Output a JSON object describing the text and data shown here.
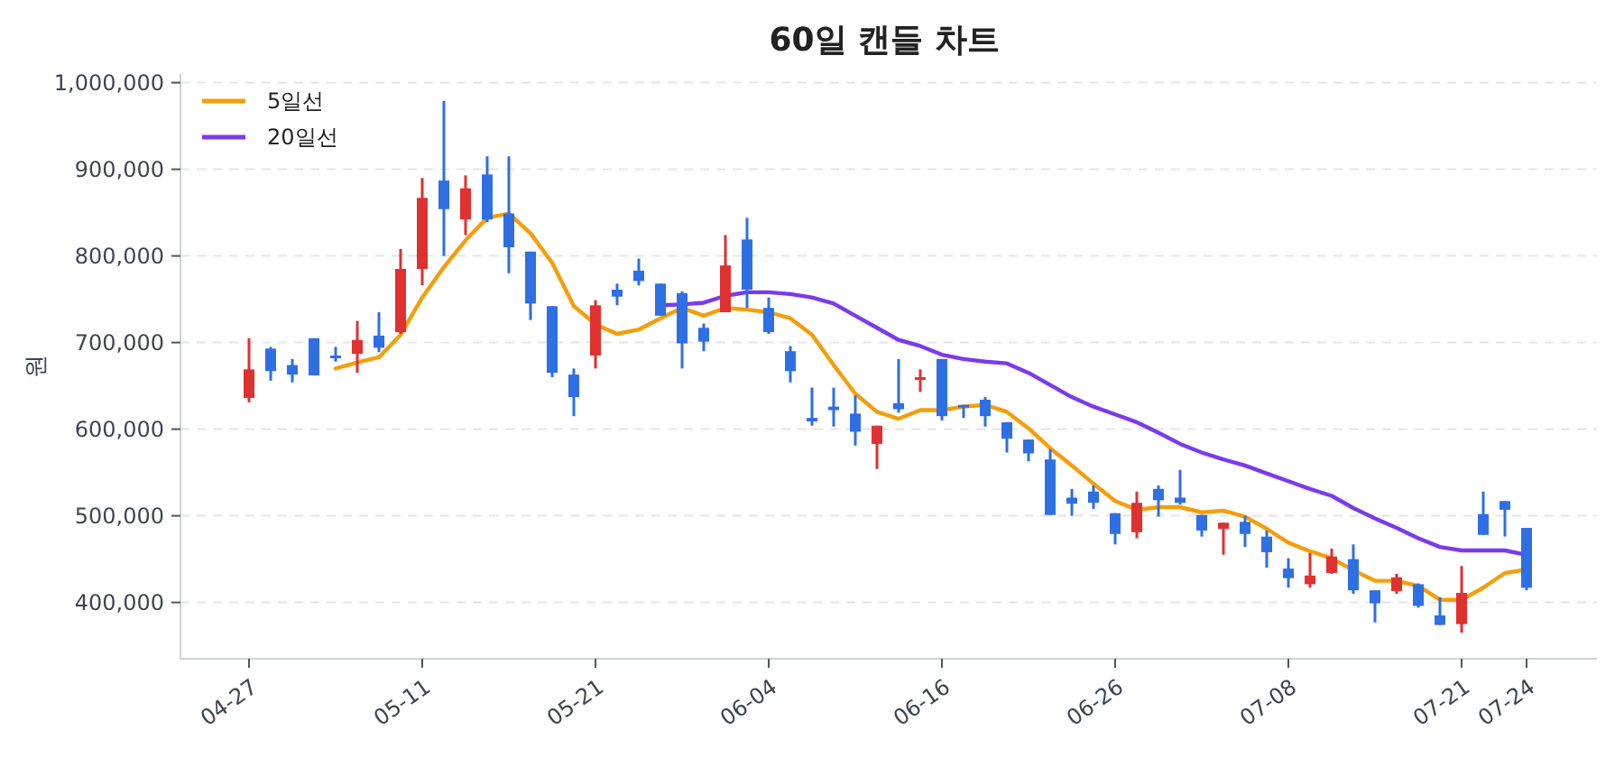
{
  "chart_data": {
    "type": "candlestick",
    "title": "60일 캔들 차트",
    "ylabel": "원",
    "categories": [
      "04-27",
      null,
      null,
      null,
      null,
      null,
      null,
      null,
      "05-11",
      null,
      null,
      null,
      null,
      null,
      null,
      null,
      "05-21",
      null,
      null,
      null,
      null,
      null,
      null,
      null,
      "06-04",
      null,
      null,
      null,
      null,
      null,
      null,
      null,
      "06-16",
      null,
      null,
      null,
      null,
      null,
      null,
      null,
      "06-26",
      null,
      null,
      null,
      null,
      null,
      null,
      null,
      "07-08",
      null,
      null,
      null,
      null,
      null,
      null,
      null,
      "07-21",
      null,
      null,
      "07-24"
    ],
    "ohlc": [
      [
        636000,
        705000,
        631000,
        669000
      ],
      [
        693000,
        695000,
        656000,
        667000
      ],
      [
        674000,
        681000,
        654000,
        663000
      ],
      [
        705000,
        705000,
        662000,
        662000
      ],
      [
        685000,
        695000,
        678000,
        683000
      ],
      [
        687000,
        725000,
        665000,
        703000
      ],
      [
        708000,
        735000,
        689000,
        694000
      ],
      [
        712000,
        808000,
        710000,
        785000
      ],
      [
        785000,
        890000,
        766000,
        867000
      ],
      [
        887000,
        979000,
        800000,
        854000
      ],
      [
        842000,
        893000,
        824000,
        878000
      ],
      [
        894000,
        915000,
        839000,
        842000
      ],
      [
        849000,
        915000,
        780000,
        810000
      ],
      [
        805000,
        805000,
        726000,
        745000
      ],
      [
        742000,
        742000,
        660000,
        665000
      ],
      [
        663000,
        670000,
        615000,
        637000
      ],
      [
        685000,
        749000,
        670000,
        743000
      ],
      [
        761000,
        768000,
        743000,
        753000
      ],
      [
        783000,
        797000,
        766000,
        771000
      ],
      [
        768000,
        768000,
        731000,
        731000
      ],
      [
        757000,
        759000,
        670000,
        699000
      ],
      [
        717000,
        722000,
        690000,
        701000
      ],
      [
        735000,
        824000,
        735000,
        789000
      ],
      [
        819000,
        844000,
        740000,
        761000
      ],
      [
        740000,
        752000,
        710000,
        712000
      ],
      [
        690000,
        696000,
        654000,
        667000
      ],
      [
        613000,
        648000,
        604000,
        609000
      ],
      [
        626000,
        648000,
        603000,
        622000
      ],
      [
        618000,
        639000,
        581000,
        597000
      ],
      [
        583000,
        604000,
        554000,
        604000
      ],
      [
        630000,
        681000,
        619000,
        623000
      ],
      [
        657000,
        669000,
        643000,
        660000
      ],
      [
        681000,
        681000,
        610000,
        615000
      ],
      [
        628000,
        628000,
        613000,
        626000
      ],
      [
        634000,
        637000,
        603000,
        615000
      ],
      [
        608000,
        608000,
        573000,
        589000
      ],
      [
        588000,
        588000,
        563000,
        572000
      ],
      [
        565000,
        577000,
        501000,
        501000
      ],
      [
        521000,
        531000,
        500000,
        514000
      ],
      [
        528000,
        535000,
        508000,
        515000
      ],
      [
        503000,
        503000,
        467000,
        479000
      ],
      [
        481000,
        528000,
        474000,
        515000
      ],
      [
        531000,
        535000,
        499000,
        518000
      ],
      [
        521000,
        553000,
        513000,
        515000
      ],
      [
        501000,
        501000,
        476000,
        483000
      ],
      [
        485000,
        492000,
        455000,
        492000
      ],
      [
        493000,
        500000,
        464000,
        479000
      ],
      [
        476000,
        483000,
        440000,
        458000
      ],
      [
        439000,
        451000,
        417000,
        428000
      ],
      [
        421000,
        457000,
        417000,
        431000
      ],
      [
        434000,
        462000,
        433000,
        453000
      ],
      [
        450000,
        467000,
        410000,
        414000
      ],
      [
        414000,
        414000,
        377000,
        399000
      ],
      [
        413000,
        433000,
        410000,
        429000
      ],
      [
        421000,
        422000,
        394000,
        396000
      ],
      [
        385000,
        406000,
        374000,
        374000
      ],
      [
        375000,
        442000,
        365000,
        411000
      ],
      [
        502000,
        528000,
        478000,
        478000
      ],
      [
        517000,
        517000,
        476000,
        507000
      ],
      [
        486000,
        486000,
        414000,
        417000
      ]
    ],
    "series": [
      {
        "name": "5일선",
        "type": "line",
        "color": "#f59e0b",
        "values": [
          null,
          null,
          null,
          null,
          670000,
          677000,
          683000,
          709000,
          752000,
          787000,
          818000,
          844000,
          849000,
          826000,
          792000,
          742000,
          721000,
          710000,
          715000,
          728000,
          740000,
          731000,
          740000,
          738000,
          735000,
          728000,
          709000,
          674000,
          641000,
          620000,
          612000,
          622000,
          622000,
          626000,
          628000,
          620000,
          601000,
          578000,
          558000,
          537000,
          517000,
          507000,
          510000,
          510000,
          504000,
          506000,
          499000,
          485000,
          469000,
          459000,
          451000,
          437000,
          425000,
          425000,
          419000,
          403000,
          403000,
          417000,
          434000,
          438000
        ]
      },
      {
        "name": "20일선",
        "type": "line",
        "color": "#7c3aed",
        "values": [
          null,
          null,
          null,
          null,
          null,
          null,
          null,
          null,
          null,
          null,
          null,
          null,
          null,
          null,
          null,
          null,
          null,
          null,
          null,
          743000,
          744000,
          746000,
          754000,
          758000,
          758000,
          756000,
          752000,
          745000,
          731000,
          717000,
          703000,
          696000,
          686000,
          681000,
          678000,
          676000,
          665000,
          651000,
          637000,
          626000,
          617000,
          608000,
          596000,
          583000,
          573000,
          565000,
          558000,
          549000,
          540000,
          531000,
          523000,
          509000,
          497000,
          486000,
          474000,
          464000,
          460000,
          460000,
          460000,
          455000
        ]
      }
    ],
    "ylim": [
      335000,
      1010000
    ],
    "yticks": [
      {
        "value": 400000,
        "label": "400,000"
      },
      {
        "value": 500000,
        "label": "500,000"
      },
      {
        "value": 600000,
        "label": "600,000"
      },
      {
        "value": 700000,
        "label": "700,000"
      },
      {
        "value": 800000,
        "label": "800,000"
      },
      {
        "value": 900000,
        "label": "900,000"
      },
      {
        "value": 1000000,
        "label": "1,000,000"
      }
    ],
    "grid": "y",
    "legend": "top left"
  }
}
